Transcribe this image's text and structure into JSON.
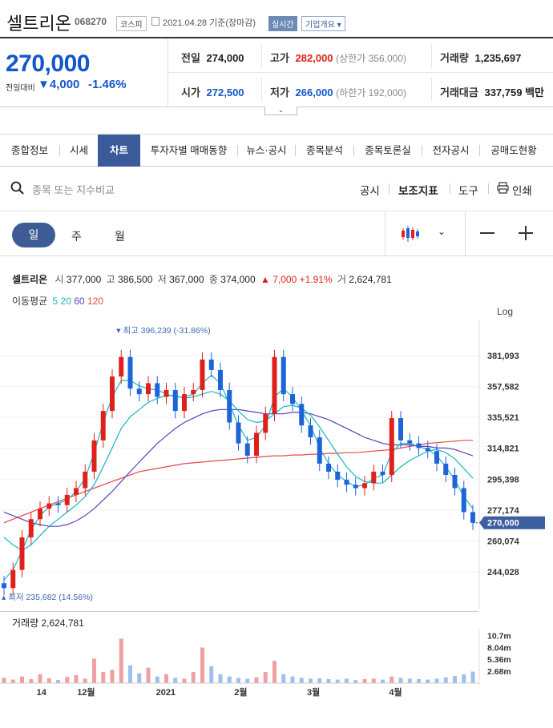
{
  "header": {
    "name": "셀트리온",
    "code": "068270",
    "market": "코스피",
    "date": "2021.04.28 기준(장마감)",
    "realtime": "실시간",
    "corp_info": "기업개요"
  },
  "quote": {
    "price": "270,000",
    "change_label": "전일대비",
    "change_value": "4,000",
    "change_pct": "-1.46%",
    "prev_close_label": "전일",
    "prev_close": "274,000",
    "high_label": "고가",
    "high": "282,000",
    "upper_limit": "(상한가 356,000)",
    "volume_label": "거래량",
    "volume": "1,235,697",
    "open_label": "시가",
    "open": "272,500",
    "low_label": "저가",
    "low": "266,000",
    "lower_limit": "(하한가 192,000)",
    "amount_label": "거래대금",
    "amount": "337,759 백만"
  },
  "tabs": [
    "종합정보",
    "시세",
    "차트",
    "투자자별 매매동향",
    "뉴스·공시",
    "종목분석",
    "종목토론실",
    "전자공시",
    "공매도현황"
  ],
  "selected_tab": 2,
  "toolbar": {
    "search_placeholder": "종목 또는 지수비교",
    "disclosure": "공시",
    "indicator": "보조지표",
    "tools": "도구",
    "print": "인쇄"
  },
  "period": {
    "day": "일",
    "week": "주",
    "month": "월"
  },
  "chart_summary": {
    "name": "셀트리온",
    "open_k": "시",
    "open": "377,000",
    "high_k": "고",
    "high": "386,500",
    "low_k": "저",
    "low": "367,000",
    "close_k": "종",
    "close": "374,000",
    "change": "▲ 7,000 +1.91%",
    "vol_k": "거",
    "vol": "2,624,781"
  },
  "ma": {
    "label": "이동평균",
    "p5": "5",
    "p20": "20",
    "p60": "60",
    "p120": "120"
  },
  "colors": {
    "up": "#e0201b",
    "down": "#1d64d8",
    "ma5": "#1fb6c1",
    "ma20": "#17b5c6",
    "ma60": "#5b3fbf",
    "ma120": "#e5484d",
    "accent": "#3b5a9a"
  },
  "chart_data": {
    "type": "candlestick",
    "scale": "Log",
    "y_ticks": [
      "381,093",
      "357,582",
      "335,521",
      "314,821",
      "295,398",
      "277,174",
      "260,074",
      "244,028"
    ],
    "y_tick_values": [
      381093,
      357582,
      335521,
      314821,
      295398,
      277174,
      260074,
      244028
    ],
    "current_price_label": "270,000",
    "high_annotation": "최고 396,239 (-31.86%)",
    "low_annotation": "최저 235,682 (14.56%)",
    "x_labels": [
      "14",
      "12월",
      "2021",
      "2월",
      "3월",
      "4월"
    ],
    "volume_label": "거래량 2,624,781",
    "volume_ticks": [
      "10.7m",
      "8.04m",
      "5.36m",
      "2.68m"
    ],
    "close_path": [
      236000,
      245000,
      262000,
      272000,
      278000,
      281000,
      280000,
      286000,
      290000,
      300000,
      320000,
      340000,
      365000,
      380000,
      356000,
      352000,
      360000,
      350000,
      355000,
      340000,
      352000,
      355000,
      378000,
      370000,
      355000,
      332000,
      318000,
      310000,
      325000,
      338000,
      380000,
      352000,
      345000,
      330000,
      322000,
      305000,
      300000,
      295000,
      292000,
      290000,
      293000,
      300000,
      298000,
      335000,
      320000,
      318000,
      315000,
      313000,
      305000,
      298000,
      290000,
      276000,
      270000
    ],
    "ma5_path": [
      240000,
      245000,
      255000,
      266000,
      274000,
      279000,
      281000,
      283000,
      288000,
      296000,
      312000,
      332000,
      350000,
      362000,
      362000,
      358000,
      356000,
      355000,
      352000,
      350000,
      350000,
      352000,
      360000,
      366000,
      360000,
      345000,
      330000,
      320000,
      322000,
      330000,
      350000,
      356000,
      350000,
      340000,
      330000,
      315000,
      305000,
      298000,
      294000,
      291000,
      292000,
      296000,
      298000,
      312000,
      318000,
      318000,
      316000,
      314000,
      310000,
      303000,
      295000,
      285000,
      278000
    ],
    "ma20_path": [
      262000,
      258000,
      255000,
      258000,
      263000,
      268000,
      272000,
      276000,
      280000,
      285000,
      292000,
      303000,
      315000,
      328000,
      336000,
      341000,
      346000,
      349000,
      351000,
      351000,
      349000,
      350000,
      352000,
      354000,
      352000,
      347000,
      340000,
      334000,
      332000,
      333000,
      338000,
      343000,
      344000,
      342000,
      337000,
      329000,
      320000,
      311000,
      303000,
      297000,
      294000,
      293000,
      293000,
      298000,
      303000,
      307000,
      310000,
      313000,
      314000,
      312000,
      308000,
      302000,
      296000
    ],
    "ma60_path": [
      276000,
      274000,
      272000,
      270000,
      269000,
      268000,
      268000,
      269000,
      271000,
      274000,
      278000,
      283000,
      288000,
      294000,
      300000,
      306000,
      312000,
      318000,
      323000,
      328000,
      332000,
      335000,
      338000,
      340000,
      341000,
      341000,
      341000,
      340000,
      339000,
      338000,
      338000,
      338000,
      339000,
      339000,
      338000,
      336000,
      334000,
      331000,
      328000,
      325000,
      322000,
      320000,
      318000,
      317000,
      317000,
      317000,
      316000,
      316000,
      315000,
      315000,
      314000,
      312000,
      310000
    ],
    "ma120_path": [
      270000,
      272000,
      274000,
      276000,
      278000,
      280000,
      282000,
      284000,
      286000,
      288000,
      290000,
      292000,
      294000,
      296000,
      298000,
      300000,
      301000,
      302000,
      303000,
      304000,
      305000,
      305500,
      306000,
      306500,
      307000,
      307500,
      308000,
      308500,
      309000,
      309500,
      310000,
      310000,
      310500,
      310500,
      311000,
      311000,
      311500,
      311500,
      312000,
      312000,
      312500,
      313000,
      313500,
      314000,
      315000,
      316000,
      317000,
      318000,
      318500,
      319000,
      319500,
      320000,
      320000
    ],
    "volume_m": [
      1.2,
      0.8,
      1.5,
      0.9,
      2.0,
      1.1,
      0.7,
      1.4,
      1.8,
      1.0,
      5.5,
      2.5,
      3.0,
      10.0,
      4.0,
      2.2,
      3.5,
      1.5,
      2.0,
      1.2,
      1.0,
      2.5,
      8.0,
      3.8,
      2.0,
      1.5,
      1.2,
      1.0,
      1.3,
      2.5,
      5.0,
      2.0,
      1.5,
      1.2,
      1.0,
      1.1,
      0.9,
      0.8,
      1.0,
      0.7,
      0.9,
      1.0,
      0.8,
      1.5,
      1.2,
      1.0,
      0.9,
      0.8,
      1.0,
      1.3,
      1.6,
      2.0,
      2.6
    ]
  }
}
